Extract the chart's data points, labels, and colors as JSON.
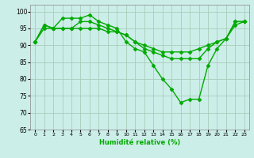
{
  "xlabel": "Humidité relative (%)",
  "ylabel": "",
  "background_color": "#cceee8",
  "grid_color": "#aaccbb",
  "line_color": "#00aa00",
  "marker": "D",
  "markersize": 2.5,
  "linewidth": 1.0,
  "xlim": [
    -0.5,
    23.5
  ],
  "ylim": [
    65,
    102
  ],
  "yticks": [
    65,
    70,
    75,
    80,
    85,
    90,
    95,
    100
  ],
  "xticks": [
    0,
    1,
    2,
    3,
    4,
    5,
    6,
    7,
    8,
    9,
    10,
    11,
    12,
    13,
    14,
    15,
    16,
    17,
    18,
    19,
    20,
    21,
    22,
    23
  ],
  "series": [
    [
      91,
      96,
      95,
      98,
      98,
      98,
      99,
      97,
      96,
      95,
      91,
      89,
      88,
      84,
      80,
      77,
      73,
      74,
      74,
      84,
      89,
      92,
      97,
      97
    ],
    [
      91,
      96,
      95,
      95,
      95,
      97,
      97,
      96,
      95,
      94,
      93,
      91,
      89,
      88,
      87,
      86,
      86,
      86,
      86,
      89,
      91,
      92,
      97,
      97
    ],
    [
      91,
      95,
      95,
      95,
      95,
      95,
      95,
      95,
      94,
      94,
      93,
      91,
      90,
      89,
      88,
      88,
      88,
      88,
      89,
      90,
      91,
      92,
      96,
      97
    ]
  ]
}
